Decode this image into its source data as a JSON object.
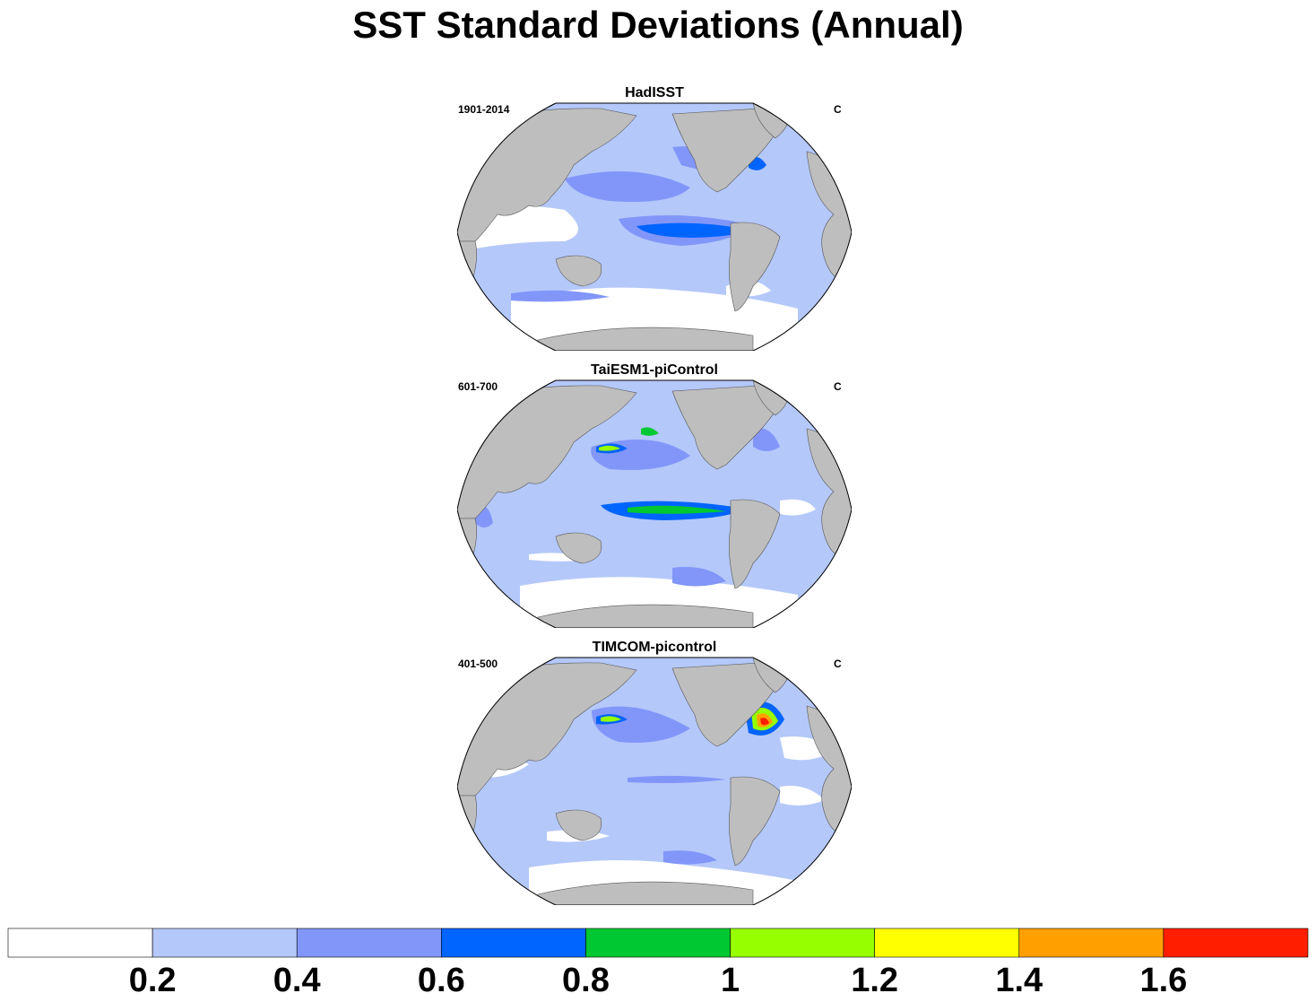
{
  "title": "SST Standard Deviations (Annual)",
  "panels": [
    {
      "title": "HadISST",
      "left_label": "1901-2014",
      "right_label": "C"
    },
    {
      "title": "TaiESM1-piControl",
      "left_label": "601-700",
      "right_label": "C"
    },
    {
      "title": "TIMCOM-picontrol",
      "left_label": "401-500",
      "right_label": "C"
    }
  ],
  "projection": "Robinson",
  "land_color": "#bebebe",
  "colorbar": {
    "labels": [
      "0.2",
      "0.4",
      "0.6",
      "0.8",
      "1",
      "1.2",
      "1.4",
      "1.6"
    ],
    "colors": [
      "#ffffff",
      "#b4c8fa",
      "#8296fa",
      "#0064ff",
      "#00c832",
      "#96ff00",
      "#ffff00",
      "#ffa000",
      "#ff1e00"
    ]
  }
}
